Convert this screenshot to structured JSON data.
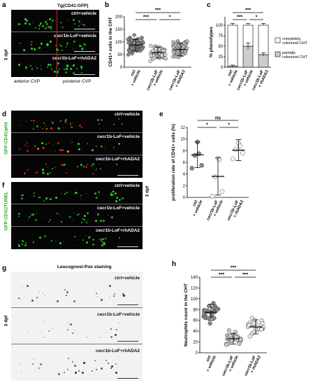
{
  "panels": {
    "a": {
      "letter": "a",
      "header": "Tg(CD41:GFP)",
      "side_label": "3 dpf",
      "rows": [
        "ctrl+vehicle",
        "cecr1b-LoF+vehicle",
        "cecr1b-LoF+rhADA2"
      ],
      "bottom_left": "anterior CVP",
      "bottom_right": "posterior CVP"
    },
    "d": {
      "letter": "d",
      "side_label": "GFP-CD41/pH3",
      "rows": [
        "ctrl+vehicle",
        "cecr1b-LoF+vehicle",
        "cecr1b-LoF+rhADA2"
      ]
    },
    "f": {
      "letter": "f",
      "side_label": "GFP-CD41/TUNEL",
      "rows": [
        "ctrl+vehicle",
        "cecr1b-LoF+vehicle",
        "cecr1b-LoF+rhADA2"
      ],
      "outer_label": "3 dpf"
    },
    "g": {
      "letter": "g",
      "header": "Leucognost-Pox staining",
      "side_label": "3 dpf",
      "rows": [
        "ctrl+vehicle",
        "cecr1b-LoF+vehicle",
        "cecr1b-LoF+rhADA2"
      ]
    },
    "b_letter": "b",
    "c_letter": "c",
    "e_letter": "e",
    "h_letter": "h"
  },
  "chart_data": [
    {
      "id": "b",
      "type": "scatter",
      "ylabel": "CD41+ cells in the CHT",
      "ylim": [
        0,
        200
      ],
      "yticks": [
        0,
        50,
        100,
        150,
        200
      ],
      "categories": [
        "ctrl + vehicle",
        "cecr1b-LoF + vehicle",
        "cecr1b-LoF + rhADA2"
      ],
      "means": [
        88,
        58,
        70
      ],
      "sd": [
        22,
        22,
        25
      ],
      "significance": [
        {
          "from": 0,
          "to": 1,
          "label": "***"
        },
        {
          "from": 1,
          "to": 2,
          "label": "*"
        },
        {
          "from": 0,
          "to": 2,
          "label": "***"
        }
      ]
    },
    {
      "id": "c",
      "type": "bar",
      "ylabel": "% phenotypes",
      "ylim": [
        0,
        120
      ],
      "yticks": [
        0,
        25,
        50,
        75,
        100
      ],
      "categories": [
        "ctrl + vehicle",
        "cecr1b-LoF + vehicle",
        "cecr1b-LoF + rhADA2"
      ],
      "series": [
        {
          "name": "completely colonized CHT",
          "values": [
            97,
            50,
            70
          ],
          "err": [
            2,
            8,
            4
          ]
        },
        {
          "name": "partially colonized CHT",
          "values": [
            3,
            50,
            30
          ],
          "err": [
            1,
            8,
            4
          ]
        }
      ],
      "significance": [
        {
          "from": 0,
          "to": 1,
          "label": "***"
        },
        {
          "from": 1,
          "to": 2,
          "label": "*"
        },
        {
          "from": 0,
          "to": 2,
          "label": "***"
        }
      ]
    },
    {
      "id": "e",
      "type": "scatter",
      "ylabel": "proliferation rate of CD41+ cells (%)",
      "ylim": [
        0,
        12
      ],
      "yticks": [
        0,
        2,
        4,
        6,
        8,
        10,
        12
      ],
      "categories": [
        "ctrl + vehicle",
        "cecr1b-LoF + vehicle",
        "cecr1b-LoF + rhADA2"
      ],
      "points": [
        [
          9.5,
          7.5,
          7.2,
          5.5,
          5.0
        ],
        [
          6.7,
          6.5,
          3.5,
          1.0,
          0.2
        ],
        [
          9.3,
          8.8,
          8.2,
          7.6,
          6.6
        ]
      ],
      "means": [
        7.3,
        3.6,
        8.1
      ],
      "sd": [
        2.2,
        3.2,
        1.8
      ],
      "significance": [
        {
          "from": 0,
          "to": 1,
          "label": "*"
        },
        {
          "from": 1,
          "to": 2,
          "label": "*"
        },
        {
          "from": 0,
          "to": 2,
          "label": "ns"
        }
      ]
    },
    {
      "id": "h",
      "type": "scatter",
      "ylabel": "Neutrophils count in the CHT",
      "ylim": [
        0,
        140
      ],
      "yticks": [
        0,
        20,
        40,
        60,
        80,
        100,
        120,
        140
      ],
      "categories": [
        "ctrl + vehicle",
        "cecr1b-LoF + vehicle",
        "cecr1b-LoF + rhADA2"
      ],
      "means": [
        75,
        26,
        48
      ],
      "sd": [
        15,
        10,
        13
      ],
      "significance": [
        {
          "from": 0,
          "to": 1,
          "label": "***"
        },
        {
          "from": 1,
          "to": 2,
          "label": "***"
        },
        {
          "from": 0,
          "to": 2,
          "label": "***"
        }
      ]
    }
  ]
}
